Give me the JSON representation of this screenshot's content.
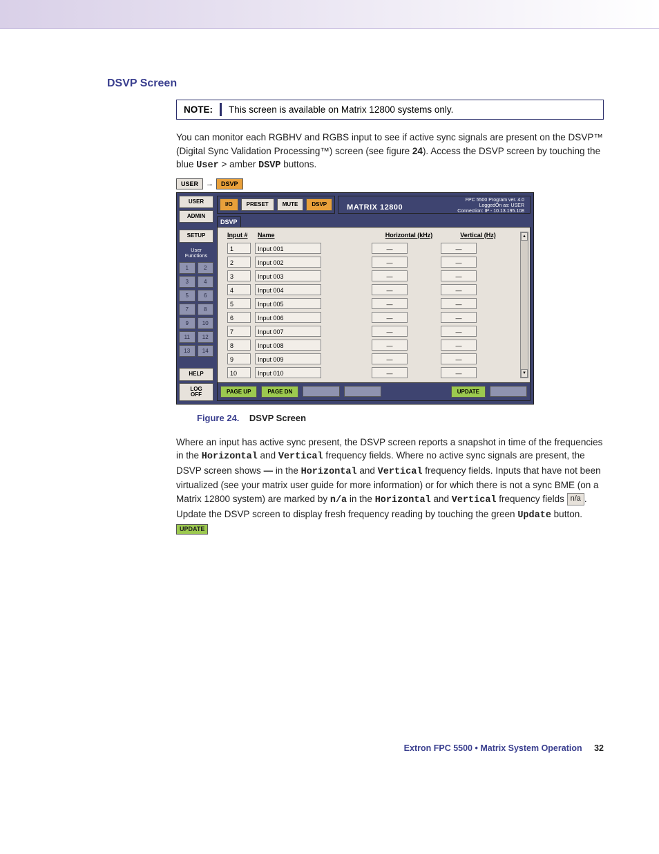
{
  "colors": {
    "heading": "#3a3f8f",
    "note_border": "#2a2d6a",
    "app_bg": "#3e4470",
    "panel_bg": "#e7e2db",
    "amber": "#e9a03a",
    "green": "#9cc94f",
    "num_btn": "#8f93b0"
  },
  "section_title": "DSVP Screen",
  "note": {
    "label": "NOTE:",
    "text": "This screen is available on Matrix 12800 systems only."
  },
  "intro": {
    "para1_a": "You can monitor each RGBHV and RGBS input to see if active sync signals are present on the DSVP™ (Digital Sync Validation Processing™) screen (see figure ",
    "fig_ref": "24",
    "para1_b": "). Access the DSVP screen by touching the blue ",
    "user_btn": "User",
    "sep": " > amber ",
    "dsvp_btn": "DSVP",
    "tail": " buttons."
  },
  "crumbs": {
    "user": "USER",
    "dsvp": "DSVP"
  },
  "app": {
    "sidebar": {
      "user": "USER",
      "admin": "ADMIN",
      "setup": "SETUP",
      "user_functions": "User\nFunctions",
      "numbers": [
        "1",
        "2",
        "3",
        "4",
        "5",
        "6",
        "7",
        "8",
        "9",
        "10",
        "11",
        "12",
        "13",
        "14"
      ],
      "help": "HELP",
      "logoff": "LOG\nOFF"
    },
    "tabs": {
      "io": "I/O",
      "preset": "PRESET",
      "mute": "MUTE",
      "dsvp": "DSVP"
    },
    "title": {
      "main": "MATRIX 12800",
      "program": "FPC 5500 Program ver. 4.0",
      "logged": "LoggedOn as: USER",
      "conn": "Connection: IP - 10.13.195.108"
    },
    "panel_label": "DSVP",
    "headers": {
      "input": "Input #",
      "name": "Name",
      "horiz": "Horizontal (kHz)",
      "vert": "Vertical (Hz)"
    },
    "rows": [
      {
        "num": "1",
        "name": "Input 001",
        "h": "—",
        "v": "—"
      },
      {
        "num": "2",
        "name": "Input 002",
        "h": "—",
        "v": "—"
      },
      {
        "num": "3",
        "name": "Input 003",
        "h": "—",
        "v": "—"
      },
      {
        "num": "4",
        "name": "Input 004",
        "h": "—",
        "v": "—"
      },
      {
        "num": "5",
        "name": "Input 005",
        "h": "—",
        "v": "—"
      },
      {
        "num": "6",
        "name": "Input 006",
        "h": "—",
        "v": "—"
      },
      {
        "num": "7",
        "name": "Input 007",
        "h": "—",
        "v": "—"
      },
      {
        "num": "8",
        "name": "Input 008",
        "h": "—",
        "v": "—"
      },
      {
        "num": "9",
        "name": "Input 009",
        "h": "—",
        "v": "—"
      },
      {
        "num": "10",
        "name": "Input 010",
        "h": "—",
        "v": "—"
      }
    ],
    "bottom": {
      "page_up": "PAGE UP",
      "page_dn": "PAGE DN",
      "update": "UPDATE"
    }
  },
  "figure": {
    "label": "Figure 24.",
    "caption": "DSVP Screen"
  },
  "explain": {
    "p1": "Where an input has active sync present, the DSVP screen reports a snapshot in time of the frequencies in the ",
    "horiz": "Horizontal",
    "and": " and ",
    "vert": "Vertical",
    "p2": " frequency fields. Where no active sync signals are present, the DSVP screen shows ",
    "dash": "—",
    "p3": " in the ",
    "p4": " frequency fields. Inputs that have not been virtualized (see your matrix user guide for more information) or for which there is not a sync BME (on a Matrix 12800 system) are marked by ",
    "na_bold": "n/a",
    "p5": " in the ",
    "p6": " frequency fields ",
    "na_box": "n/a",
    "p7": ". Update the DSVP screen to display fresh frequency reading by touching the green ",
    "update": "Update",
    "p8": " button. ",
    "update_box": "UPDATE"
  },
  "footer": {
    "brand": "Extron FPC 5500 • Matrix System Operation",
    "page": "32"
  }
}
